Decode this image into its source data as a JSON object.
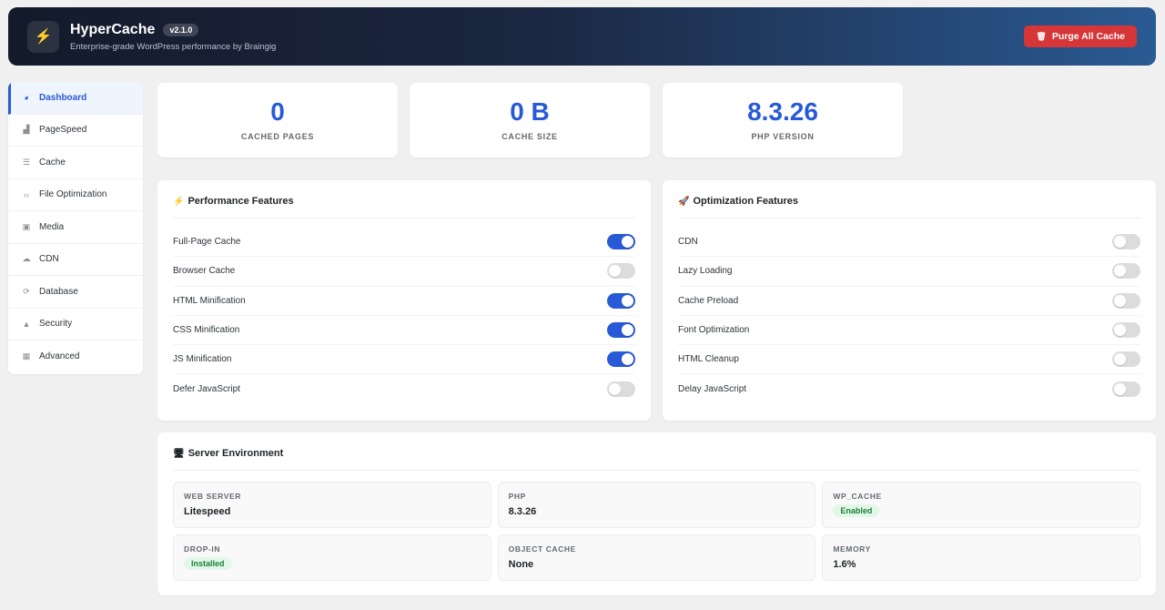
{
  "header": {
    "logo_icon": "lightning-icon",
    "title": "HyperCache",
    "version": "v2.1.0",
    "subtitle": "Enterprise-grade WordPress performance by Braingig",
    "purge_label": "Purge All Cache",
    "purge_icon": "trash-icon",
    "purge_color": "#d63638",
    "accent_color": "#2859d6"
  },
  "sidebar": {
    "items": [
      {
        "label": "Dashboard",
        "icon": "dashboard-icon",
        "glyph": "◕"
      },
      {
        "label": "PageSpeed",
        "icon": "chart-icon",
        "glyph": "▟"
      },
      {
        "label": "Cache",
        "icon": "database-icon",
        "glyph": "☰"
      },
      {
        "label": "File Optimization",
        "icon": "code-icon",
        "glyph": "‹›"
      },
      {
        "label": "Media",
        "icon": "image-icon",
        "glyph": "▣"
      },
      {
        "label": "CDN",
        "icon": "cloud-icon",
        "glyph": "☁"
      },
      {
        "label": "Database",
        "icon": "refresh-icon",
        "glyph": "⟳"
      },
      {
        "label": "Security",
        "icon": "lock-icon",
        "glyph": "▲"
      },
      {
        "label": "Advanced",
        "icon": "grid-icon",
        "glyph": "▦"
      }
    ]
  },
  "stats": [
    {
      "value": "0",
      "label": "CACHED PAGES"
    },
    {
      "value": "0 B",
      "label": "CACHE SIZE"
    },
    {
      "value": "8.3.26",
      "label": "PHP VERSION"
    }
  ],
  "performance": {
    "title": "Performance Features",
    "icon_glyph": "⚡",
    "features": [
      {
        "label": "Full-Page Cache",
        "enabled": true
      },
      {
        "label": "Browser Cache",
        "enabled": false
      },
      {
        "label": "HTML Minification",
        "enabled": true
      },
      {
        "label": "CSS Minification",
        "enabled": true
      },
      {
        "label": "JS Minification",
        "enabled": true
      },
      {
        "label": "Defer JavaScript",
        "enabled": false
      }
    ]
  },
  "optimization": {
    "title": "Optimization Features",
    "icon_glyph": "🚀",
    "features": [
      {
        "label": "CDN",
        "enabled": false
      },
      {
        "label": "Lazy Loading",
        "enabled": false
      },
      {
        "label": "Cache Preload",
        "enabled": false
      },
      {
        "label": "Font Optimization",
        "enabled": false
      },
      {
        "label": "HTML Cleanup",
        "enabled": false
      },
      {
        "label": "Delay JavaScript",
        "enabled": false
      }
    ]
  },
  "server": {
    "title": "Server Environment",
    "icon_glyph": "🖥",
    "cells": [
      {
        "label": "WEB SERVER",
        "value": "Litespeed",
        "badge": false
      },
      {
        "label": "PHP",
        "value": "8.3.26",
        "badge": false
      },
      {
        "label": "WP_CACHE",
        "value": "Enabled",
        "badge": true
      },
      {
        "label": "DROP-IN",
        "value": "Installed",
        "badge": true
      },
      {
        "label": "OBJECT CACHE",
        "value": "None",
        "badge": false
      },
      {
        "label": "MEMORY",
        "value": "1.6%",
        "badge": false
      }
    ]
  }
}
